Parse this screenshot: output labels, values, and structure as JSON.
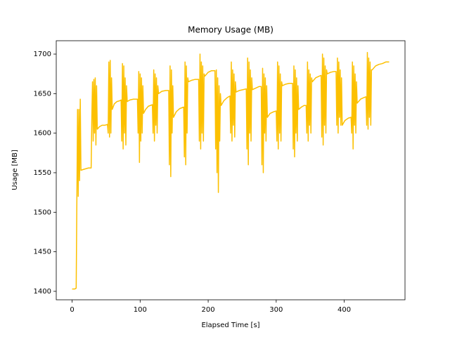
{
  "chart_data": {
    "type": "line",
    "title": "Memory Usage (MB)",
    "x_label": "Elapsed Time [s]",
    "y_label": "Usage [MB]",
    "color": "#fcc000",
    "x": [
      0,
      2,
      4,
      6,
      7,
      8,
      9,
      10,
      11,
      12,
      13,
      16,
      20,
      24,
      28,
      29,
      30,
      31,
      32,
      33,
      34,
      35,
      36,
      37,
      40,
      44,
      48,
      52,
      53,
      54,
      55,
      56,
      57,
      58,
      59,
      62,
      66,
      70,
      72,
      73,
      74,
      75,
      76,
      77,
      78,
      79,
      80,
      81,
      85,
      90,
      96,
      97,
      98,
      99,
      100,
      101,
      102,
      103,
      104,
      105,
      108,
      112,
      118,
      119,
      120,
      121,
      122,
      123,
      124,
      125,
      126,
      127,
      132,
      138,
      142,
      143,
      144,
      145,
      146,
      147,
      148,
      149,
      153,
      158,
      164,
      165,
      166,
      167,
      168,
      169,
      170,
      171,
      176,
      181,
      186,
      187,
      188,
      189,
      190,
      191,
      192,
      193,
      194,
      195,
      200,
      205,
      210,
      211,
      212,
      213,
      214,
      215,
      216,
      217,
      218,
      219,
      223,
      228,
      232,
      233,
      234,
      235,
      236,
      237,
      238,
      239,
      240,
      241,
      246,
      251,
      256,
      257,
      258,
      259,
      260,
      261,
      262,
      263,
      264,
      265,
      270,
      275,
      278,
      279,
      280,
      281,
      282,
      283,
      284,
      285,
      286,
      287,
      291,
      296,
      300,
      301,
      302,
      303,
      304,
      305,
      306,
      307,
      308,
      309,
      314,
      319,
      324,
      325,
      326,
      327,
      328,
      329,
      330,
      331,
      332,
      333,
      337,
      341,
      344,
      345,
      346,
      347,
      348,
      349,
      350,
      351,
      352,
      353,
      358,
      363,
      366,
      367,
      368,
      369,
      370,
      371,
      372,
      373,
      374,
      375,
      380,
      385,
      388,
      389,
      390,
      391,
      392,
      393,
      394,
      395,
      396,
      397,
      401,
      406,
      410,
      411,
      412,
      413,
      414,
      415,
      416,
      417,
      418,
      419,
      424,
      429,
      432,
      433,
      434,
      435,
      436,
      437,
      438,
      439,
      440,
      441,
      446,
      451,
      456,
      461,
      466
    ],
    "values": [
      1403,
      1403,
      1403,
      1404,
      1515,
      1630,
      1520,
      1630,
      1540,
      1643,
      1553,
      1554,
      1555,
      1556,
      1556,
      1620,
      1665,
      1590,
      1668,
      1600,
      1670,
      1585,
      1660,
      1605,
      1608,
      1610,
      1610,
      1611,
      1600,
      1690,
      1595,
      1692,
      1600,
      1670,
      1630,
      1637,
      1640,
      1641,
      1642,
      1590,
      1688,
      1580,
      1685,
      1600,
      1670,
      1585,
      1660,
      1640,
      1642,
      1643,
      1643,
      1600,
      1678,
      1563,
      1675,
      1590,
      1670,
      1600,
      1660,
      1625,
      1630,
      1634,
      1636,
      1600,
      1680,
      1590,
      1675,
      1610,
      1670,
      1600,
      1660,
      1650,
      1653,
      1654,
      1654,
      1560,
      1685,
      1545,
      1680,
      1600,
      1660,
      1620,
      1627,
      1631,
      1633,
      1570,
      1690,
      1560,
      1685,
      1600,
      1670,
      1665,
      1667,
      1668,
      1668,
      1590,
      1700,
      1580,
      1690,
      1600,
      1685,
      1590,
      1675,
      1672,
      1677,
      1679,
      1679,
      1580,
      1680,
      1550,
      1670,
      1525,
      1660,
      1590,
      1650,
      1635,
      1641,
      1645,
      1647,
      1600,
      1690,
      1590,
      1680,
      1610,
      1675,
      1595,
      1665,
      1652,
      1654,
      1655,
      1656,
      1580,
      1695,
      1560,
      1690,
      1600,
      1680,
      1590,
      1670,
      1655,
      1657,
      1659,
      1659,
      1560,
      1682,
      1550,
      1675,
      1600,
      1670,
      1590,
      1660,
      1620,
      1625,
      1627,
      1628,
      1590,
      1690,
      1580,
      1685,
      1600,
      1675,
      1590,
      1665,
      1660,
      1662,
      1663,
      1663,
      1580,
      1685,
      1570,
      1680,
      1600,
      1670,
      1590,
      1660,
      1630,
      1633,
      1635,
      1635,
      1600,
      1690,
      1590,
      1680,
      1610,
      1675,
      1600,
      1670,
      1665,
      1670,
      1672,
      1673,
      1595,
      1700,
      1585,
      1695,
      1610,
      1685,
      1600,
      1680,
      1675,
      1677,
      1678,
      1678,
      1610,
      1695,
      1600,
      1690,
      1620,
      1680,
      1610,
      1670,
      1610,
      1616,
      1619,
      1620,
      1600,
      1690,
      1580,
      1685,
      1610,
      1675,
      1600,
      1665,
      1638,
      1643,
      1645,
      1646,
      1610,
      1702,
      1605,
      1695,
      1620,
      1690,
      1610,
      1680,
      1680,
      1685,
      1687,
      1688,
      1690,
      1690
    ],
    "xlim": [
      -23.3,
      489.3
    ],
    "ylim": [
      1389.3,
      1716.9
    ],
    "xticks": [
      0,
      100,
      200,
      300,
      400
    ],
    "yticks": [
      1400,
      1450,
      1500,
      1550,
      1600,
      1650,
      1700
    ]
  }
}
